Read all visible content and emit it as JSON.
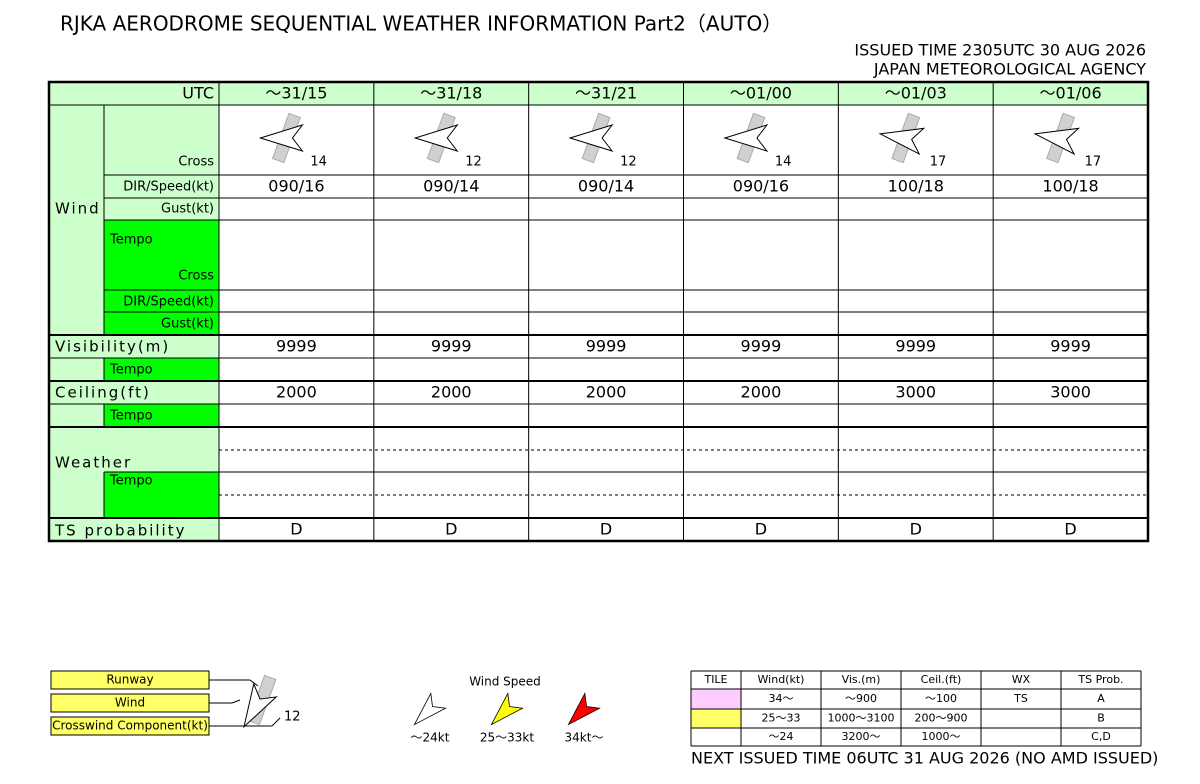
{
  "header": {
    "title": "RJKA AERODROME SEQUENTIAL WEATHER INFORMATION Part2（AUTO）",
    "issued": "ISSUED TIME 2305UTC 30 AUG 2026",
    "agency": "JAPAN METEOROLOGICAL AGENCY"
  },
  "table": {
    "utc_label": "UTC",
    "wind_label": "Wind",
    "cross_label": "Cross",
    "dir_speed_label": "DIR/Speed(kt)",
    "gust_label": "Gust(kt)",
    "tempo_label": "Tempo",
    "visibility_label": "Visibility(m)",
    "ceiling_label": "Ceiling(ft)",
    "weather_label": "Weather",
    "ts_label": "TS probability",
    "columns": [
      {
        "time": "～31/15",
        "crosswind": 14,
        "dir_speed": "090/16",
        "visibility": 9999,
        "ceiling": 2000,
        "ts": "D"
      },
      {
        "time": "～31/18",
        "crosswind": 12,
        "dir_speed": "090/14",
        "visibility": 9999,
        "ceiling": 2000,
        "ts": "D"
      },
      {
        "time": "～31/21",
        "crosswind": 12,
        "dir_speed": "090/14",
        "visibility": 9999,
        "ceiling": 2000,
        "ts": "D"
      },
      {
        "time": "～01/00",
        "crosswind": 14,
        "dir_speed": "090/16",
        "visibility": 9999,
        "ceiling": 2000,
        "ts": "D"
      },
      {
        "time": "～01/03",
        "crosswind": 17,
        "dir_speed": "100/18",
        "visibility": 9999,
        "ceiling": 3000,
        "ts": "D"
      },
      {
        "time": "～01/06",
        "crosswind": 17,
        "dir_speed": "100/18",
        "visibility": 9999,
        "ceiling": 3000,
        "ts": "D"
      }
    ]
  },
  "legend": {
    "labels": [
      "Runway",
      "Wind",
      "Crosswind Component(kt)"
    ],
    "example_crosswind": 12,
    "speed_title": "Wind Speed",
    "speeds": [
      {
        "label": "～24kt",
        "color": "#ffffff"
      },
      {
        "label": "25～33kt",
        "color": "#ffff00"
      },
      {
        "label": "34kt～",
        "color": "#ff0000"
      }
    ]
  },
  "tiles": {
    "headers": [
      "TILE",
      "Wind(kt)",
      "Vis.(m)",
      "Ceil.(ft)",
      "WX",
      "TS Prob."
    ],
    "rows": [
      {
        "color": "#ffccff",
        "cells": [
          "34～",
          "～900",
          "～100",
          "TS",
          "A"
        ]
      },
      {
        "color": "#ffff66",
        "cells": [
          "25～33",
          "1000～3100",
          "200～900",
          null,
          "B"
        ]
      },
      {
        "color": "#ffffff",
        "cells": [
          "～24",
          "3200～",
          "1000～",
          null,
          "C,D"
        ]
      }
    ]
  },
  "footer": "NEXT ISSUED TIME 06UTC 31 AUG 2026 (NO AMD ISSUED)"
}
